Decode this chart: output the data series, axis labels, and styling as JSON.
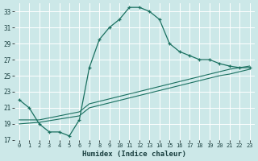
{
  "xlabel": "Humidex (Indice chaleur)",
  "background_color": "#cce8e8",
  "grid_color": "#ffffff",
  "line_color": "#1a7060",
  "xlim": [
    -0.5,
    23.5
  ],
  "ylim": [
    17,
    34
  ],
  "xticks": [
    0,
    1,
    2,
    3,
    4,
    5,
    6,
    7,
    8,
    9,
    10,
    11,
    12,
    13,
    14,
    15,
    16,
    17,
    18,
    19,
    20,
    21,
    22,
    23
  ],
  "yticks": [
    17,
    19,
    21,
    23,
    25,
    27,
    29,
    31,
    33
  ],
  "series1_x": [
    0,
    1,
    2,
    3,
    4,
    5,
    6,
    7,
    8,
    9,
    10,
    11,
    12,
    13,
    14,
    15,
    16,
    17,
    18,
    19,
    20,
    21,
    22,
    23
  ],
  "series1_y": [
    22,
    21,
    19,
    18,
    18,
    17.5,
    19.5,
    26,
    29.5,
    31,
    32,
    33.5,
    33.5,
    33,
    32,
    29,
    28,
    27.5,
    27,
    27,
    26.5,
    26.2,
    26,
    26
  ],
  "series2_x": [
    0,
    2,
    6,
    7,
    20,
    21,
    22,
    23
  ],
  "series2_y": [
    19.5,
    19.5,
    20.5,
    21.5,
    25.5,
    25.8,
    26.0,
    26.2
  ],
  "series3_x": [
    0,
    2,
    6,
    7,
    20,
    21,
    22,
    23
  ],
  "series3_y": [
    19.0,
    19.2,
    20.0,
    21.0,
    25.0,
    25.2,
    25.5,
    25.8
  ]
}
